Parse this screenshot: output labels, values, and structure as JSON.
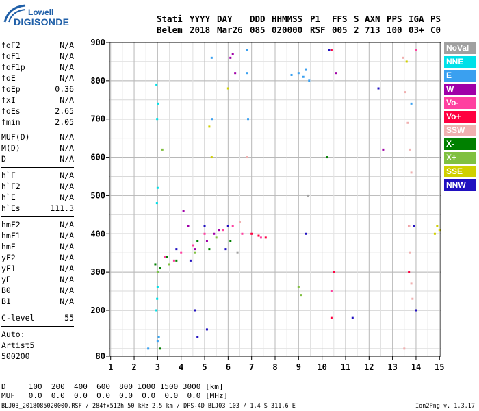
{
  "logo": {
    "line1": "Lowell",
    "line2": "DIGISONDE"
  },
  "header": {
    "labels": [
      "Stati",
      "YYYY",
      "DAY",
      "DDD",
      "HHMMSS",
      "P1",
      "FFS",
      "S",
      "AXN",
      "PPS",
      "IGA",
      "PS"
    ],
    "values": [
      "Belem",
      "2018",
      "Mar26",
      "085",
      "020000",
      "RSF",
      "005",
      "2",
      "713",
      "100",
      "03+",
      "C0"
    ]
  },
  "params_group1": [
    {
      "name": "foF2",
      "value": "N/A"
    },
    {
      "name": "foF1",
      "value": "N/A"
    },
    {
      "name": "foF1p",
      "value": "N/A"
    },
    {
      "name": "foE",
      "value": "N/A"
    },
    {
      "name": "foEp",
      "value": "0.36"
    },
    {
      "name": "fxI",
      "value": "N/A"
    },
    {
      "name": "foEs",
      "value": "2.65"
    },
    {
      "name": "fmin",
      "value": "2.05"
    }
  ],
  "params_group2": [
    {
      "name": "MUF(D)",
      "value": "N/A"
    },
    {
      "name": "M(D)",
      "value": "N/A"
    },
    {
      "name": "D",
      "value": "N/A"
    }
  ],
  "params_group3": [
    {
      "name": "h`F",
      "value": "N/A"
    },
    {
      "name": "h`F2",
      "value": "N/A"
    },
    {
      "name": "h`E",
      "value": "N/A"
    },
    {
      "name": "h`Es",
      "value": "111.3"
    }
  ],
  "params_group4": [
    {
      "name": "hmF2",
      "value": "N/A"
    },
    {
      "name": "hmF1",
      "value": "N/A"
    },
    {
      "name": "hmE",
      "value": "N/A"
    },
    {
      "name": "yF2",
      "value": "N/A"
    },
    {
      "name": "yF1",
      "value": "N/A"
    },
    {
      "name": "yE",
      "value": "N/A"
    },
    {
      "name": "B0",
      "value": "N/A"
    },
    {
      "name": "B1",
      "value": "N/A"
    }
  ],
  "clevel": {
    "name": "C-level",
    "value": "55"
  },
  "auto": {
    "line1": "Auto:",
    "line2": "Artist5",
    "line3": "500200"
  },
  "legend": [
    {
      "label": "NoVal",
      "color": "#a0a0a0"
    },
    {
      "label": "NNE",
      "color": "#00e0e8"
    },
    {
      "label": "E",
      "color": "#3aa0f0"
    },
    {
      "label": "W",
      "color": "#a000a8"
    },
    {
      "label": "Vo-",
      "color": "#ff40a0"
    },
    {
      "label": "Vo+",
      "color": "#ff0040"
    },
    {
      "label": "SSW",
      "color": "#f0b0b0"
    },
    {
      "label": "X-",
      "color": "#008000"
    },
    {
      "label": "X+",
      "color": "#80c040"
    },
    {
      "label": "SSE",
      "color": "#d0d000"
    },
    {
      "label": "NNW",
      "color": "#2010c0"
    }
  ],
  "bottom_table": {
    "d_row": "D     100  200  400  600  800 1000 1500 3000 [km]",
    "muf_row": "MUF   0.0  0.0  0.0  0.0  0.0  0.0  0.0  0.0 [MHz]"
  },
  "footer": {
    "left": "BLJ03_2018085020000.RSF / 284fx512h 50 kHz 2.5 km / DPS-4D BLJ03 103 / 1.4 S 311.6 E",
    "right": "Ion2Png v. 1.3.17"
  },
  "chart_data": {
    "type": "scatter",
    "title": "",
    "xlabel": "",
    "ylabel": "",
    "xlim": [
      0.95,
      15.05
    ],
    "ylim": [
      80,
      900
    ],
    "x_ticks": [
      "1",
      "2",
      "3",
      "4",
      "5",
      "6",
      "7",
      "8",
      "9",
      "10",
      "11",
      "12",
      "13",
      "14",
      "15"
    ],
    "y_ticks": [
      "80",
      "200",
      "300",
      "400",
      "500",
      "600",
      "700",
      "800",
      "900"
    ],
    "grid": true,
    "legend_position": "right",
    "series": [
      {
        "name": "NNE",
        "color": "#00e0e8",
        "points": [
          [
            2.95,
            200
          ],
          [
            2.98,
            230
          ],
          [
            3.0,
            260
          ],
          [
            3.02,
            300
          ],
          [
            2.97,
            480
          ],
          [
            3.0,
            520
          ],
          [
            2.98,
            700
          ],
          [
            3.02,
            740
          ],
          [
            2.95,
            790
          ],
          [
            3.05,
            130
          ]
        ]
      },
      {
        "name": "E",
        "color": "#3aa0f0",
        "points": [
          [
            5.3,
            860
          ],
          [
            5.32,
            700
          ],
          [
            6.8,
            880
          ],
          [
            6.82,
            820
          ],
          [
            6.85,
            700
          ],
          [
            8.7,
            815
          ],
          [
            9.0,
            820
          ],
          [
            9.2,
            810
          ],
          [
            9.3,
            830
          ],
          [
            9.45,
            800
          ],
          [
            3.0,
            120
          ],
          [
            3.05,
            130
          ],
          [
            2.6,
            100
          ],
          [
            13.8,
            740
          ]
        ]
      },
      {
        "name": "W",
        "color": "#a000a8",
        "points": [
          [
            4.3,
            420
          ],
          [
            4.6,
            360
          ],
          [
            5.1,
            380
          ],
          [
            5.4,
            400
          ],
          [
            5.6,
            410
          ],
          [
            6.0,
            420
          ],
          [
            6.1,
            860
          ],
          [
            6.2,
            870
          ],
          [
            6.3,
            820
          ],
          [
            4.1,
            460
          ],
          [
            10.6,
            820
          ],
          [
            12.6,
            620
          ]
        ]
      },
      {
        "name": "Vo-",
        "color": "#ff40a0",
        "points": [
          [
            3.3,
            340
          ],
          [
            3.7,
            330
          ],
          [
            4.0,
            350
          ],
          [
            4.5,
            370
          ],
          [
            5.0,
            400
          ],
          [
            5.8,
            410
          ],
          [
            6.2,
            420
          ],
          [
            6.6,
            400
          ],
          [
            7.4,
            390
          ],
          [
            10.4,
            250
          ],
          [
            14.0,
            880
          ]
        ]
      },
      {
        "name": "Vo+",
        "color": "#ff0040",
        "points": [
          [
            7.0,
            400
          ],
          [
            7.3,
            395
          ],
          [
            7.6,
            390
          ],
          [
            10.4,
            180
          ],
          [
            10.5,
            300
          ],
          [
            10.4,
            880
          ],
          [
            13.7,
            420
          ],
          [
            13.7,
            300
          ]
        ]
      },
      {
        "name": "SSW",
        "color": "#f0b0b0",
        "points": [
          [
            13.45,
            860
          ],
          [
            13.55,
            770
          ],
          [
            13.65,
            690
          ],
          [
            13.75,
            620
          ],
          [
            13.8,
            560
          ],
          [
            13.7,
            420
          ],
          [
            13.75,
            350
          ],
          [
            13.8,
            270
          ],
          [
            13.85,
            230
          ],
          [
            13.5,
            100
          ],
          [
            6.8,
            600
          ],
          [
            6.5,
            430
          ]
        ]
      },
      {
        "name": "X-",
        "color": "#008000",
        "points": [
          [
            2.9,
            320
          ],
          [
            3.1,
            310
          ],
          [
            3.4,
            340
          ],
          [
            3.8,
            330
          ],
          [
            4.7,
            380
          ],
          [
            5.2,
            360
          ],
          [
            6.1,
            380
          ],
          [
            10.2,
            600
          ],
          [
            3.1,
            100
          ]
        ]
      },
      {
        "name": "X+",
        "color": "#80c040",
        "points": [
          [
            3.0,
            300
          ],
          [
            3.5,
            320
          ],
          [
            4.6,
            350
          ],
          [
            5.5,
            390
          ],
          [
            9.0,
            260
          ],
          [
            9.1,
            240
          ],
          [
            3.2,
            620
          ]
        ]
      },
      {
        "name": "SSE",
        "color": "#d0d000",
        "points": [
          [
            5.3,
            600
          ],
          [
            5.2,
            680
          ],
          [
            6.0,
            780
          ],
          [
            14.9,
            420
          ],
          [
            15.0,
            410
          ],
          [
            14.8,
            400
          ],
          [
            13.6,
            850
          ]
        ]
      },
      {
        "name": "NNW",
        "color": "#2010c0",
        "points": [
          [
            3.8,
            360
          ],
          [
            4.4,
            330
          ],
          [
            4.6,
            200
          ],
          [
            4.7,
            130
          ],
          [
            5.1,
            150
          ],
          [
            5.0,
            420
          ],
          [
            5.9,
            360
          ],
          [
            6.0,
            420
          ],
          [
            9.3,
            400
          ],
          [
            10.3,
            880
          ],
          [
            11.3,
            180
          ],
          [
            12.4,
            780
          ],
          [
            13.9,
            420
          ],
          [
            14.0,
            200
          ]
        ]
      },
      {
        "name": "NoVal",
        "color": "#a0a0a0",
        "points": [
          [
            6.4,
            350
          ],
          [
            9.4,
            500
          ]
        ]
      }
    ]
  }
}
